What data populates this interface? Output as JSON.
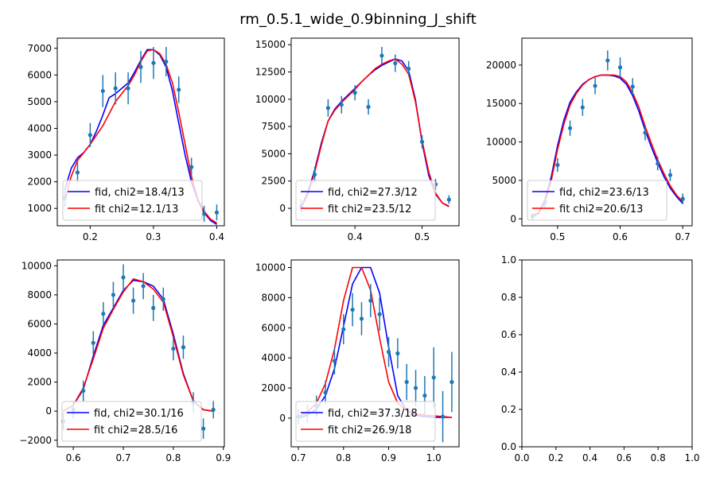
{
  "figure": {
    "title": "rm_0.5.1_wide_0.9binning_J_shift",
    "colors": {
      "data": "#1f77b4",
      "fid": "#0000ff",
      "fit": "#ff0000",
      "axes": "#000000"
    }
  },
  "chart_data": [
    {
      "type": "line",
      "xlim": [
        0.148,
        0.412
      ],
      "ylim": [
        350,
        7380
      ],
      "xticks": [
        0.2,
        0.3,
        0.4
      ],
      "yticks": [
        1000,
        2000,
        3000,
        4000,
        5000,
        6000,
        7000
      ],
      "points": {
        "x": [
          0.16,
          0.18,
          0.2,
          0.22,
          0.24,
          0.26,
          0.28,
          0.3,
          0.32,
          0.34,
          0.36,
          0.38,
          0.4
        ],
        "y": [
          1400,
          2350,
          3750,
          5400,
          5500,
          5500,
          6300,
          6450,
          6500,
          5450,
          2550,
          800,
          850
        ],
        "err": [
          350,
          400,
          450,
          600,
          600,
          600,
          600,
          600,
          550,
          500,
          350,
          300,
          300
        ]
      },
      "series": [
        {
          "name": "fid, chi2=18.4/13",
          "color": "#0000ff",
          "x": [
            0.16,
            0.17,
            0.18,
            0.19,
            0.2,
            0.21,
            0.22,
            0.23,
            0.24,
            0.25,
            0.26,
            0.27,
            0.28,
            0.29,
            0.3,
            0.31,
            0.32,
            0.33,
            0.34,
            0.35,
            0.36,
            0.37,
            0.38,
            0.39,
            0.4
          ],
          "y": [
            1700,
            2500,
            2900,
            3100,
            3400,
            3900,
            4500,
            5150,
            5300,
            5500,
            5700,
            6100,
            6550,
            6950,
            6950,
            6750,
            6300,
            5400,
            4200,
            3000,
            2000,
            1300,
            850,
            550,
            400
          ]
        },
        {
          "name": "fit chi2=12.1/13",
          "color": "#ff0000",
          "x": [
            0.16,
            0.17,
            0.18,
            0.19,
            0.2,
            0.21,
            0.22,
            0.23,
            0.24,
            0.25,
            0.26,
            0.27,
            0.28,
            0.29,
            0.3,
            0.31,
            0.32,
            0.33,
            0.34,
            0.35,
            0.36,
            0.37,
            0.38,
            0.39,
            0.4
          ],
          "y": [
            1300,
            2200,
            2800,
            3100,
            3400,
            3750,
            4100,
            4550,
            5000,
            5300,
            5600,
            6000,
            6500,
            6900,
            6950,
            6800,
            6400,
            5700,
            4600,
            3400,
            2200,
            1350,
            900,
            600,
            450
          ]
        }
      ]
    },
    {
      "type": "line",
      "xlim": [
        0.305,
        0.555
      ],
      "ylim": [
        -1600,
        15600
      ],
      "xticks": [
        0.4,
        0.5
      ],
      "yticks": [
        0,
        2500,
        5000,
        7500,
        10000,
        12500,
        15000
      ],
      "points": {
        "x": [
          0.32,
          0.34,
          0.36,
          0.38,
          0.4,
          0.42,
          0.44,
          0.46,
          0.48,
          0.5,
          0.52,
          0.54
        ],
        "y": [
          200,
          3100,
          9200,
          9500,
          10600,
          9300,
          14000,
          13300,
          12800,
          6100,
          2200,
          800
        ],
        "err": [
          600,
          700,
          800,
          800,
          700,
          700,
          800,
          800,
          700,
          600,
          500,
          400
        ]
      },
      "series": [
        {
          "name": "fid, chi2=27.3/12",
          "color": "#0000ff",
          "x": [
            0.32,
            0.33,
            0.34,
            0.35,
            0.36,
            0.37,
            0.38,
            0.39,
            0.4,
            0.41,
            0.42,
            0.43,
            0.44,
            0.45,
            0.46,
            0.47,
            0.48,
            0.49,
            0.5,
            0.51,
            0.52,
            0.53,
            0.54
          ],
          "y": [
            100,
            1500,
            3500,
            6000,
            8000,
            9100,
            9800,
            10400,
            11000,
            11600,
            12200,
            12700,
            13100,
            13400,
            13700,
            13500,
            12600,
            10000,
            6000,
            3000,
            1300,
            500,
            200
          ]
        },
        {
          "name": "fit chi2=23.5/12",
          "color": "#ff0000",
          "x": [
            0.32,
            0.33,
            0.34,
            0.35,
            0.36,
            0.37,
            0.38,
            0.39,
            0.4,
            0.41,
            0.42,
            0.43,
            0.44,
            0.45,
            0.46,
            0.47,
            0.48,
            0.49,
            0.5,
            0.51,
            0.52,
            0.53,
            0.54
          ],
          "y": [
            100,
            1300,
            3300,
            5800,
            8000,
            9000,
            9700,
            10300,
            10900,
            11600,
            12200,
            12800,
            13200,
            13500,
            13700,
            13200,
            12300,
            9800,
            6200,
            3300,
            1400,
            500,
            150
          ]
        }
      ]
    },
    {
      "type": "line",
      "xlim": [
        0.443,
        0.715
      ],
      "ylim": [
        -900,
        23500
      ],
      "xticks": [
        0.5,
        0.6,
        0.7
      ],
      "yticks": [
        0,
        5000,
        10000,
        15000,
        20000
      ],
      "points": {
        "x": [
          0.46,
          0.48,
          0.5,
          0.52,
          0.54,
          0.56,
          0.58,
          0.6,
          0.62,
          0.64,
          0.66,
          0.68,
          0.7
        ],
        "y": [
          300,
          2200,
          7000,
          11800,
          14500,
          17300,
          20600,
          19700,
          17200,
          11200,
          7200,
          5700,
          2600
        ],
        "err": [
          500,
          700,
          900,
          1000,
          1100,
          1100,
          1300,
          1300,
          1100,
          1000,
          900,
          800,
          700
        ]
      },
      "series": [
        {
          "name": "fid, chi2=23.6/13",
          "color": "#0000ff",
          "x": [
            0.46,
            0.47,
            0.48,
            0.49,
            0.5,
            0.51,
            0.52,
            0.53,
            0.54,
            0.55,
            0.56,
            0.57,
            0.58,
            0.59,
            0.6,
            0.61,
            0.62,
            0.63,
            0.64,
            0.65,
            0.66,
            0.67,
            0.68,
            0.69,
            0.7
          ],
          "y": [
            400,
            800,
            2500,
            5500,
            9500,
            12800,
            15200,
            16500,
            17500,
            18100,
            18500,
            18700,
            18700,
            18600,
            18300,
            17500,
            16000,
            14000,
            11500,
            9300,
            7300,
            5500,
            4000,
            2900,
            2000
          ]
        },
        {
          "name": "fit chi2=20.6/13",
          "color": "#ff0000",
          "x": [
            0.46,
            0.47,
            0.48,
            0.49,
            0.5,
            0.51,
            0.52,
            0.53,
            0.54,
            0.55,
            0.56,
            0.57,
            0.58,
            0.59,
            0.6,
            0.61,
            0.62,
            0.63,
            0.64,
            0.65,
            0.66,
            0.67,
            0.68,
            0.69,
            0.7
          ],
          "y": [
            300,
            700,
            2200,
            5000,
            9000,
            12300,
            14800,
            16300,
            17400,
            18100,
            18500,
            18700,
            18700,
            18700,
            18500,
            17800,
            16400,
            14500,
            12000,
            9800,
            7700,
            5900,
            4300,
            3100,
            2200
          ]
        }
      ]
    },
    {
      "type": "line",
      "xlim": [
        0.568,
        0.902
      ],
      "ylim": [
        -2450,
        10400
      ],
      "xticks": [
        0.6,
        0.7,
        0.8,
        0.9
      ],
      "yticks": [
        -2000,
        0,
        2000,
        4000,
        6000,
        8000,
        10000
      ],
      "points": {
        "x": [
          0.58,
          0.6,
          0.62,
          0.64,
          0.66,
          0.68,
          0.7,
          0.72,
          0.74,
          0.76,
          0.78,
          0.8,
          0.82,
          0.84,
          0.86,
          0.88
        ],
        "y": [
          -700,
          100,
          1400,
          4700,
          6700,
          8000,
          9200,
          7600,
          8600,
          7100,
          7700,
          4300,
          4400,
          600,
          -1200,
          100
        ],
        "err": [
          600,
          600,
          700,
          800,
          800,
          900,
          900,
          900,
          900,
          900,
          800,
          800,
          800,
          700,
          700,
          600
        ]
      },
      "series": [
        {
          "name": "fid, chi2=30.1/16",
          "color": "#0000ff",
          "x": [
            0.58,
            0.6,
            0.62,
            0.64,
            0.66,
            0.68,
            0.7,
            0.72,
            0.74,
            0.76,
            0.78,
            0.8,
            0.82,
            0.84,
            0.86,
            0.88
          ],
          "y": [
            0,
            400,
            1500,
            3800,
            5900,
            7100,
            8300,
            9000,
            8900,
            8600,
            7700,
            5300,
            2600,
            700,
            100,
            0
          ]
        },
        {
          "name": "fit chi2=28.5/16",
          "color": "#ff0000",
          "x": [
            0.58,
            0.6,
            0.62,
            0.64,
            0.66,
            0.68,
            0.7,
            0.72,
            0.74,
            0.76,
            0.78,
            0.8,
            0.82,
            0.84,
            0.86,
            0.88
          ],
          "y": [
            0,
            400,
            1600,
            3600,
            5700,
            7000,
            8200,
            9100,
            8900,
            8400,
            7500,
            5100,
            2500,
            700,
            100,
            0
          ]
        }
      ]
    },
    {
      "type": "line",
      "xlim": [
        0.684,
        1.056
      ],
      "ylim": [
        -1900,
        10500
      ],
      "xticks": [
        0.7,
        0.8,
        0.9,
        1.0
      ],
      "yticks": [
        0,
        2000,
        4000,
        6000,
        8000,
        10000
      ],
      "points": {
        "x": [
          0.7,
          0.72,
          0.74,
          0.76,
          0.78,
          0.8,
          0.82,
          0.84,
          0.86,
          0.88,
          0.9,
          0.92,
          0.94,
          0.96,
          0.98,
          1.0,
          1.02,
          1.04
        ],
        "y": [
          100,
          300,
          800,
          1700,
          3800,
          5900,
          7200,
          6600,
          7800,
          6900,
          4400,
          4300,
          2400,
          2000,
          1500,
          2700,
          100,
          2400
        ],
        "err": [
          500,
          600,
          700,
          800,
          900,
          1000,
          1100,
          1100,
          1100,
          1100,
          1000,
          1000,
          1200,
          1200,
          1300,
          2000,
          1700,
          2000
        ]
      },
      "series": [
        {
          "name": "fid, chi2=37.3/18",
          "color": "#0000ff",
          "x": [
            0.7,
            0.72,
            0.74,
            0.76,
            0.78,
            0.8,
            0.82,
            0.84,
            0.86,
            0.88,
            0.9,
            0.92,
            0.94,
            0.96,
            0.98,
            1.0,
            1.02,
            1.04
          ],
          "y": [
            0,
            200,
            600,
            1500,
            3300,
            6100,
            8900,
            10000,
            10000,
            8300,
            4700,
            1500,
            500,
            200,
            100,
            50,
            50,
            50
          ]
        },
        {
          "name": "fit chi2=26.9/18",
          "color": "#ff0000",
          "x": [
            0.7,
            0.72,
            0.74,
            0.76,
            0.78,
            0.8,
            0.82,
            0.84,
            0.86,
            0.88,
            0.9,
            0.92,
            0.94,
            0.96,
            0.98,
            1.0,
            1.02,
            1.04
          ],
          "y": [
            100,
            400,
            1000,
            2300,
            4600,
            7800,
            10000,
            10000,
            8500,
            5300,
            2400,
            1000,
            500,
            300,
            200,
            150,
            100,
            50
          ]
        }
      ]
    },
    {
      "type": "line",
      "xlim": [
        0,
        1
      ],
      "ylim": [
        0,
        1
      ],
      "xticks": [
        0.0,
        0.2,
        0.4,
        0.6,
        0.8,
        1.0
      ],
      "yticks": [
        0.0,
        0.2,
        0.4,
        0.6,
        0.8,
        1.0
      ],
      "points": {
        "x": [],
        "y": [],
        "err": []
      },
      "series": []
    }
  ]
}
